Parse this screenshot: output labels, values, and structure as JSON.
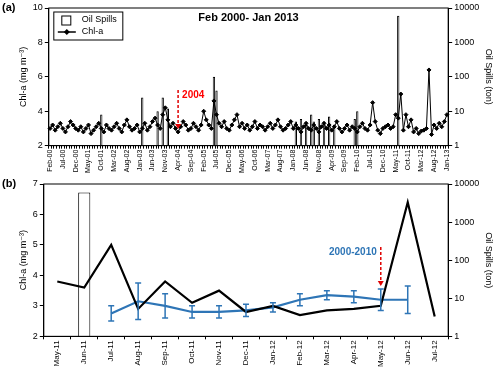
{
  "chart_data": [
    {
      "type": "bar",
      "panel": "(a)",
      "title": "Feb 2000- Jan 2013",
      "categories": [
        "Feb-00",
        null,
        null,
        null,
        null,
        "Jul-00",
        null,
        null,
        null,
        null,
        "Dec-00",
        null,
        null,
        null,
        null,
        "May-01",
        null,
        null,
        null,
        null,
        "Oct-01",
        null,
        null,
        null,
        null,
        "Mar-02",
        null,
        null,
        null,
        null,
        "Aug-02",
        null,
        null,
        null,
        null,
        "Jan-03",
        null,
        null,
        null,
        null,
        "Jun-03",
        null,
        null,
        null,
        null,
        "Nov-03",
        null,
        null,
        null,
        null,
        "Apr-04",
        null,
        null,
        null,
        null,
        "Sep-04",
        null,
        null,
        null,
        null,
        "Feb-05",
        null,
        null,
        null,
        null,
        "Jul-05",
        null,
        null,
        null,
        null,
        "Dec-05",
        null,
        null,
        null,
        null,
        "May-06",
        null,
        null,
        null,
        null,
        "Oct-06",
        null,
        null,
        null,
        null,
        "Mar-07",
        null,
        null,
        null,
        null,
        "Aug-07",
        null,
        null,
        null,
        null,
        "Jan-08",
        null,
        null,
        null,
        null,
        "Jun-08",
        null,
        null,
        null,
        null,
        "Nov-08",
        null,
        null,
        null,
        null,
        "Apr-09",
        null,
        null,
        null,
        null,
        "Sep-09",
        null,
        null,
        null,
        null,
        "Feb-10",
        null,
        null,
        null,
        null,
        "Jul-10",
        null,
        null,
        null,
        null,
        "Dec-10",
        null,
        null,
        null,
        null,
        "May-11",
        null,
        null,
        null,
        null,
        "Oct-11",
        null,
        null,
        null,
        null,
        "Mar-12",
        null,
        null,
        null,
        null,
        "Aug-12",
        null,
        null,
        null,
        null,
        "Jan-13"
      ],
      "series": [
        {
          "name": "Oil Spills",
          "type": "bar",
          "color": "#000000",
          "axis": "y2",
          "values": [
            null,
            null,
            null,
            null,
            null,
            null,
            null,
            null,
            null,
            null,
            null,
            null,
            null,
            null,
            null,
            null,
            null,
            null,
            null,
            null,
            8,
            null,
            null,
            null,
            null,
            null,
            null,
            null,
            null,
            null,
            null,
            null,
            null,
            null,
            null,
            null,
            25,
            null,
            null,
            null,
            null,
            null,
            10,
            null,
            25,
            null,
            12,
            null,
            null,
            null,
            null,
            null,
            null,
            null,
            null,
            null,
            null,
            null,
            null,
            null,
            null,
            null,
            null,
            null,
            100,
            40,
            null,
            null,
            null,
            null,
            null,
            null,
            null,
            null,
            null,
            null,
            null,
            null,
            null,
            null,
            null,
            null,
            null,
            null,
            null,
            null,
            null,
            null,
            null,
            null,
            null,
            null,
            null,
            null,
            null,
            null,
            5,
            null,
            6,
            null,
            4,
            null,
            8,
            5,
            null,
            6,
            null,
            5,
            null,
            7,
            null,
            4,
            null,
            null,
            null,
            null,
            null,
            null,
            null,
            6,
            10,
            null,
            null,
            null,
            null,
            null,
            null,
            null,
            null,
            null,
            null,
            null,
            null,
            null,
            null,
            null,
            6000,
            null,
            null,
            null,
            null,
            null,
            null,
            null,
            null,
            null,
            null,
            null,
            null,
            null,
            null,
            null,
            null,
            null,
            null,
            null
          ]
        },
        {
          "name": "Chl-a",
          "type": "line",
          "color": "#000000",
          "marker": "diamond",
          "values": [
            3.0,
            3.2,
            2.9,
            3.1,
            3.3,
            3.0,
            2.8,
            3.1,
            3.4,
            3.2,
            3.0,
            2.9,
            3.1,
            2.8,
            3.0,
            3.2,
            2.7,
            2.9,
            3.1,
            3.3,
            3.0,
            2.8,
            3.2,
            3.0,
            2.9,
            3.1,
            3.3,
            3.0,
            2.8,
            3.2,
            3.5,
            3.1,
            2.9,
            3.0,
            3.2,
            2.8,
            3.0,
            3.3,
            2.9,
            3.1,
            3.4,
            3.6,
            3.2,
            3.0,
            3.8,
            4.2,
            3.5,
            3.1,
            3.3,
            3.0,
            2.8,
            3.1,
            3.4,
            3.2,
            2.9,
            3.0,
            3.3,
            3.1,
            2.9,
            3.2,
            4.0,
            3.5,
            3.2,
            3.0,
            4.6,
            3.8,
            3.3,
            3.1,
            3.4,
            3.0,
            2.9,
            3.2,
            3.5,
            3.8,
            3.1,
            3.3,
            3.0,
            3.2,
            2.9,
            3.1,
            3.4,
            3.0,
            3.2,
            3.1,
            2.9,
            3.1,
            3.3,
            3.0,
            3.2,
            3.5,
            3.1,
            2.9,
            3.0,
            3.2,
            3.4,
            3.0,
            3.2,
            3.0,
            2.8,
            3.1,
            3.3,
            3.0,
            2.9,
            3.2,
            3.0,
            2.8,
            3.1,
            3.3,
            3.0,
            3.2,
            2.9,
            3.1,
            3.4,
            3.0,
            2.8,
            3.0,
            3.2,
            2.9,
            3.1,
            3.0,
            2.8,
            3.1,
            3.3,
            3.0,
            2.9,
            3.2,
            4.5,
            3.4,
            2.9,
            2.7,
            3.0,
            3.1,
            3.2,
            3.0,
            3.1,
            3.8,
            3.6,
            5.0,
            2.9,
            3.8,
            3.1,
            3.5,
            2.8,
            3.0,
            2.7,
            2.85,
            2.9,
            3.0,
            6.4,
            2.65,
            3.2,
            3.0,
            3.3,
            3.1,
            3.4,
            3.8
          ]
        }
      ],
      "ylabel": "Chl-a (mg m⁻³)",
      "y2label": "Oil Spills (ton)",
      "ylim": [
        2,
        10
      ],
      "yticks": [
        2,
        4,
        6,
        8,
        10
      ],
      "y2lim": [
        1,
        10000
      ],
      "y2ticks": [
        1,
        10,
        100,
        1000,
        10000
      ],
      "log": "y2",
      "grid": false,
      "legend": "top-left",
      "annotations": [
        {
          "text": "2004",
          "x": "Apr-04",
          "color": "#ff0000"
        }
      ]
    },
    {
      "type": "bar",
      "panel": "(b)",
      "categories": [
        "May-11",
        "Jun-11",
        "Jul-11",
        "Aug-11",
        "Sep-11",
        "Oct-11",
        "Nov-11",
        "Dec-11",
        "Jan-12",
        "Feb-12",
        "Mar-12",
        "Apr-12",
        "May-12",
        "Jun-12",
        "Jul-12"
      ],
      "series": [
        {
          "name": "Oil Spills",
          "type": "bar",
          "color": "#000000",
          "axis": "y2",
          "values": [
            null,
            6000,
            null,
            null,
            null,
            null,
            null,
            null,
            null,
            null,
            null,
            null,
            null,
            null,
            null
          ]
        },
        {
          "name": "Chl-a",
          "type": "line",
          "color": "#000000",
          "values": [
            3.8,
            3.6,
            5.0,
            2.9,
            3.8,
            3.1,
            3.5,
            2.8,
            3.0,
            2.7,
            2.85,
            2.9,
            3.0,
            6.4,
            2.65
          ]
        },
        {
          "name": "2000-2010",
          "type": "line",
          "color": "#2e75b6",
          "values": [
            null,
            null,
            2.75,
            3.15,
            3.0,
            2.8,
            2.8,
            2.85,
            2.95,
            3.2,
            3.35,
            3.3,
            3.2,
            3.2,
            null
          ],
          "errors": [
            null,
            null,
            0.25,
            0.6,
            0.4,
            0.2,
            0.2,
            0.2,
            0.15,
            0.2,
            0.15,
            0.2,
            0.35,
            0.45,
            null
          ]
        }
      ],
      "ylabel": "Chl-a (mg m⁻³)",
      "y2label": "Oil Spills (ton)",
      "ylim": [
        2,
        7
      ],
      "yticks": [
        2,
        3,
        4,
        5,
        6,
        7
      ],
      "y2lim": [
        1,
        10000
      ],
      "y2ticks": [
        1,
        10,
        100,
        1000,
        10000
      ],
      "log": "y2",
      "grid": false,
      "annotations": [
        {
          "text": "2000-2010",
          "x": "May-12",
          "color": "#2e75b6"
        }
      ]
    }
  ]
}
